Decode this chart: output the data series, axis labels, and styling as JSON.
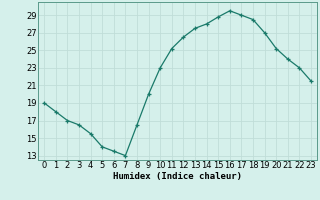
{
  "x": [
    0,
    1,
    2,
    3,
    4,
    5,
    6,
    7,
    8,
    9,
    10,
    11,
    12,
    13,
    14,
    15,
    16,
    17,
    18,
    19,
    20,
    21,
    22,
    23
  ],
  "y": [
    19,
    18,
    17,
    16.5,
    15.5,
    14,
    13.5,
    13,
    16.5,
    20,
    23,
    25.2,
    26.5,
    27.5,
    28,
    28.8,
    29.5,
    29,
    28.5,
    27,
    25.2,
    24,
    23,
    21.5
  ],
  "line_color": "#1a7a6a",
  "marker": "+",
  "marker_color": "#1a7a6a",
  "bg_color": "#d5f0eb",
  "grid_color": "#c0ddd8",
  "xlabel": "Humidex (Indice chaleur)",
  "xlim": [
    -0.5,
    23.5
  ],
  "ylim": [
    12.5,
    30.5
  ],
  "yticks": [
    13,
    15,
    17,
    19,
    21,
    23,
    25,
    27,
    29
  ],
  "xticks": [
    0,
    1,
    2,
    3,
    4,
    5,
    6,
    7,
    8,
    9,
    10,
    11,
    12,
    13,
    14,
    15,
    16,
    17,
    18,
    19,
    20,
    21,
    22,
    23
  ],
  "label_fontsize": 6.5,
  "tick_fontsize": 6.0,
  "marker_size": 3.5,
  "line_width": 0.9
}
